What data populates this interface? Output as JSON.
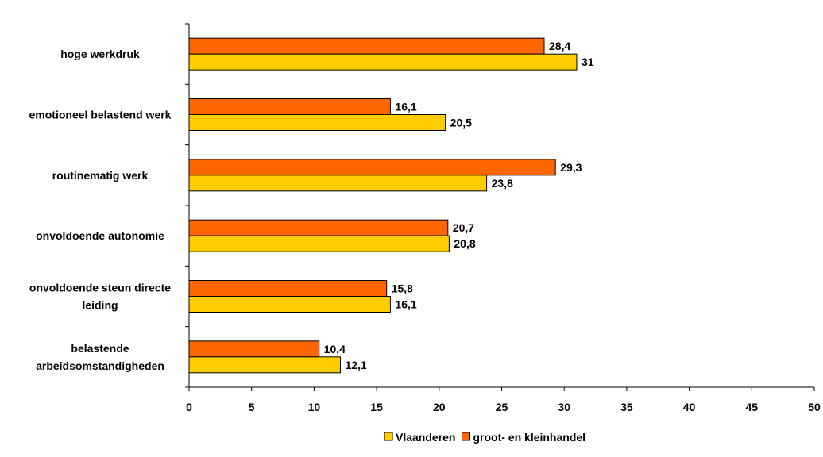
{
  "chart_data": {
    "type": "bar",
    "orientation": "horizontal",
    "categories": [
      "hoge werkdruk",
      "emotioneel belastend werk",
      "routinematig werk",
      "onvoldoende autonomie",
      "onvoldoende steun directe leiding",
      "belastende arbeidsomstandigheden"
    ],
    "category_lines": [
      [
        "hoge werkdruk"
      ],
      [
        "emotioneel belastend werk"
      ],
      [
        "routinematig werk"
      ],
      [
        "onvoldoende autonomie"
      ],
      [
        "onvoldoende steun directe",
        "leiding"
      ],
      [
        "belastende",
        "arbeidsomstandigheden"
      ]
    ],
    "series": [
      {
        "name": "groot- en kleinhandel",
        "color": "#ff6600",
        "values": [
          28.4,
          16.1,
          29.3,
          20.7,
          15.8,
          10.4
        ],
        "labels": [
          "28,4",
          "16,1",
          "29,3",
          "20,7",
          "15,8",
          "10,4"
        ]
      },
      {
        "name": "Vlaanderen",
        "color": "#ffcc00",
        "values": [
          31,
          20.5,
          23.8,
          20.8,
          16.1,
          12.1
        ],
        "labels": [
          "31",
          "20,5",
          "23,8",
          "20,8",
          "16,1",
          "12,1"
        ]
      }
    ],
    "legend_order": [
      "Vlaanderen",
      "groot- en kleinhandel"
    ],
    "legend_position": "bottom",
    "xlim": [
      0,
      50
    ],
    "xticks": [
      0,
      5,
      10,
      15,
      20,
      25,
      30,
      35,
      40,
      45,
      50
    ],
    "xlabel": "",
    "ylabel": "",
    "grid": false
  }
}
